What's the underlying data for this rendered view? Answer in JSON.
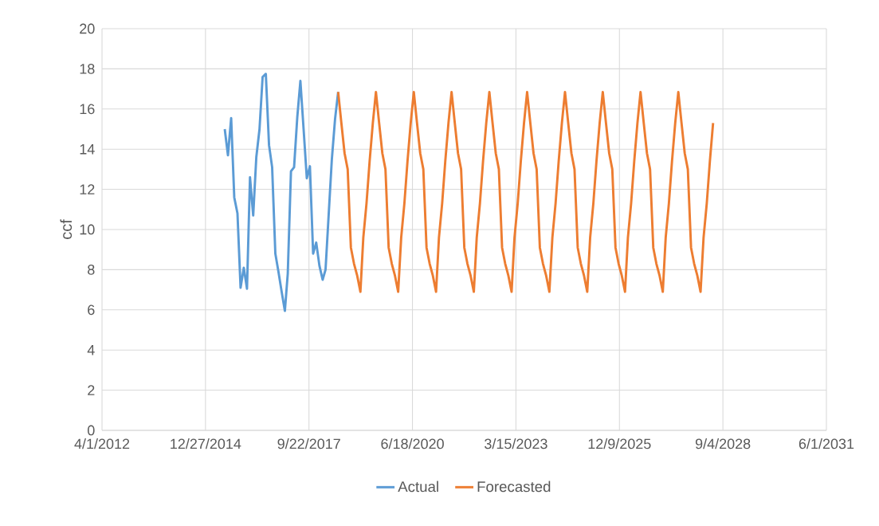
{
  "chart_data": {
    "type": "line",
    "ylabel": "ccf",
    "ylim": [
      0,
      20
    ],
    "yticks": [
      0,
      2,
      4,
      6,
      8,
      10,
      12,
      14,
      16,
      18,
      20
    ],
    "xlim": [
      "2012-04-01",
      "2031-06-01"
    ],
    "xticks": [
      {
        "value": "2012-04-01",
        "label": "4/1/2012"
      },
      {
        "value": "2014-12-27",
        "label": "12/27/2014"
      },
      {
        "value": "2017-09-22",
        "label": "9/22/2017"
      },
      {
        "value": "2020-06-18",
        "label": "6/18/2020"
      },
      {
        "value": "2023-03-15",
        "label": "3/15/2023"
      },
      {
        "value": "2025-12-09",
        "label": "12/9/2025"
      },
      {
        "value": "2028-09-04",
        "label": "9/4/2028"
      },
      {
        "value": "2031-06-01",
        "label": "6/1/2031"
      }
    ],
    "grid": true,
    "legend": "bottom",
    "series": [
      {
        "name": "Actual",
        "color": "#5b9bd5",
        "x": [
          "2015-07",
          "2015-08",
          "2015-09",
          "2015-10",
          "2015-11",
          "2015-12",
          "2016-01",
          "2016-02",
          "2016-03",
          "2016-04",
          "2016-05",
          "2016-06",
          "2016-07",
          "2016-08",
          "2016-09",
          "2016-10",
          "2016-11",
          "2016-12",
          "2017-01",
          "2017-02",
          "2017-03",
          "2017-04",
          "2017-05",
          "2017-06",
          "2017-07",
          "2017-08",
          "2017-09",
          "2017-10",
          "2017-11",
          "2017-12",
          "2018-01",
          "2018-02",
          "2018-03",
          "2018-04",
          "2018-05",
          "2018-06",
          "2018-07"
        ],
        "values": [
          15.0,
          13.7,
          15.55,
          11.6,
          10.8,
          7.1,
          8.1,
          7.05,
          12.6,
          10.7,
          13.6,
          15.0,
          17.6,
          17.75,
          14.2,
          13.1,
          8.8,
          7.9,
          6.9,
          5.95,
          7.8,
          12.9,
          13.1,
          15.6,
          17.4,
          15.0,
          12.55,
          13.15,
          8.8,
          9.35,
          8.2,
          7.5,
          8.0,
          10.8,
          13.5,
          15.5,
          16.85
        ]
      },
      {
        "name": "Forecasted",
        "color": "#ed7d31",
        "x": [
          "2018-07",
          "2018-08",
          "2018-09",
          "2018-10",
          "2018-11",
          "2018-12",
          "2019-01",
          "2019-02",
          "2019-03",
          "2019-04",
          "2019-05",
          "2019-06",
          "2019-07",
          "2019-08",
          "2019-09",
          "2019-10",
          "2019-11",
          "2019-12",
          "2020-01",
          "2020-02",
          "2020-03",
          "2020-04",
          "2020-05",
          "2020-06",
          "2020-07",
          "2020-08",
          "2020-09",
          "2020-10",
          "2020-11",
          "2020-12",
          "2021-01",
          "2021-02",
          "2021-03",
          "2021-04",
          "2021-05",
          "2021-06",
          "2021-07",
          "2021-08",
          "2021-09",
          "2021-10",
          "2021-11",
          "2021-12",
          "2022-01",
          "2022-02",
          "2022-03",
          "2022-04",
          "2022-05",
          "2022-06",
          "2022-07",
          "2022-08",
          "2022-09",
          "2022-10",
          "2022-11",
          "2022-12",
          "2023-01",
          "2023-02",
          "2023-03",
          "2023-04",
          "2023-05",
          "2023-06",
          "2023-07",
          "2023-08",
          "2023-09",
          "2023-10",
          "2023-11",
          "2023-12",
          "2024-01",
          "2024-02",
          "2024-03",
          "2024-04",
          "2024-05",
          "2024-06",
          "2024-07",
          "2024-08",
          "2024-09",
          "2024-10",
          "2024-11",
          "2024-12",
          "2025-01",
          "2025-02",
          "2025-03",
          "2025-04",
          "2025-05",
          "2025-06",
          "2025-07",
          "2025-08",
          "2025-09",
          "2025-10",
          "2025-11",
          "2025-12",
          "2026-01",
          "2026-02",
          "2026-03",
          "2026-04",
          "2026-05",
          "2026-06",
          "2026-07",
          "2026-08",
          "2026-09",
          "2026-10",
          "2026-11",
          "2026-12",
          "2027-01",
          "2027-02",
          "2027-03",
          "2027-04",
          "2027-05",
          "2027-06",
          "2027-07",
          "2027-08",
          "2027-09",
          "2027-10",
          "2027-11",
          "2027-12",
          "2028-01",
          "2028-02",
          "2028-03",
          "2028-04",
          "2028-05",
          "2028-06"
        ],
        "values": [
          16.85,
          15.3,
          13.8,
          13.0,
          9.1,
          8.3,
          7.7,
          6.9,
          9.6,
          11.3,
          13.4,
          15.3,
          16.85,
          15.3,
          13.8,
          13.0,
          9.1,
          8.3,
          7.7,
          6.9,
          9.6,
          11.3,
          13.4,
          15.3,
          16.85,
          15.3,
          13.8,
          13.0,
          9.1,
          8.3,
          7.7,
          6.9,
          9.6,
          11.3,
          13.4,
          15.3,
          16.85,
          15.3,
          13.8,
          13.0,
          9.1,
          8.3,
          7.7,
          6.9,
          9.6,
          11.3,
          13.4,
          15.3,
          16.85,
          15.3,
          13.8,
          13.0,
          9.1,
          8.3,
          7.7,
          6.9,
          9.6,
          11.3,
          13.4,
          15.3,
          16.85,
          15.3,
          13.8,
          13.0,
          9.1,
          8.3,
          7.7,
          6.9,
          9.6,
          11.3,
          13.4,
          15.3,
          16.85,
          15.3,
          13.8,
          13.0,
          9.1,
          8.3,
          7.7,
          6.9,
          9.6,
          11.3,
          13.4,
          15.3,
          16.85,
          15.3,
          13.8,
          13.0,
          9.1,
          8.3,
          7.7,
          6.9,
          9.6,
          11.3,
          13.4,
          15.3,
          16.85,
          15.3,
          13.8,
          13.0,
          9.1,
          8.3,
          7.7,
          6.9,
          9.6,
          11.3,
          13.4,
          15.3,
          16.85,
          15.3,
          13.8,
          13.0,
          9.1,
          8.3,
          7.7,
          6.9,
          9.6,
          11.3,
          13.4,
          15.3
        ]
      }
    ]
  }
}
